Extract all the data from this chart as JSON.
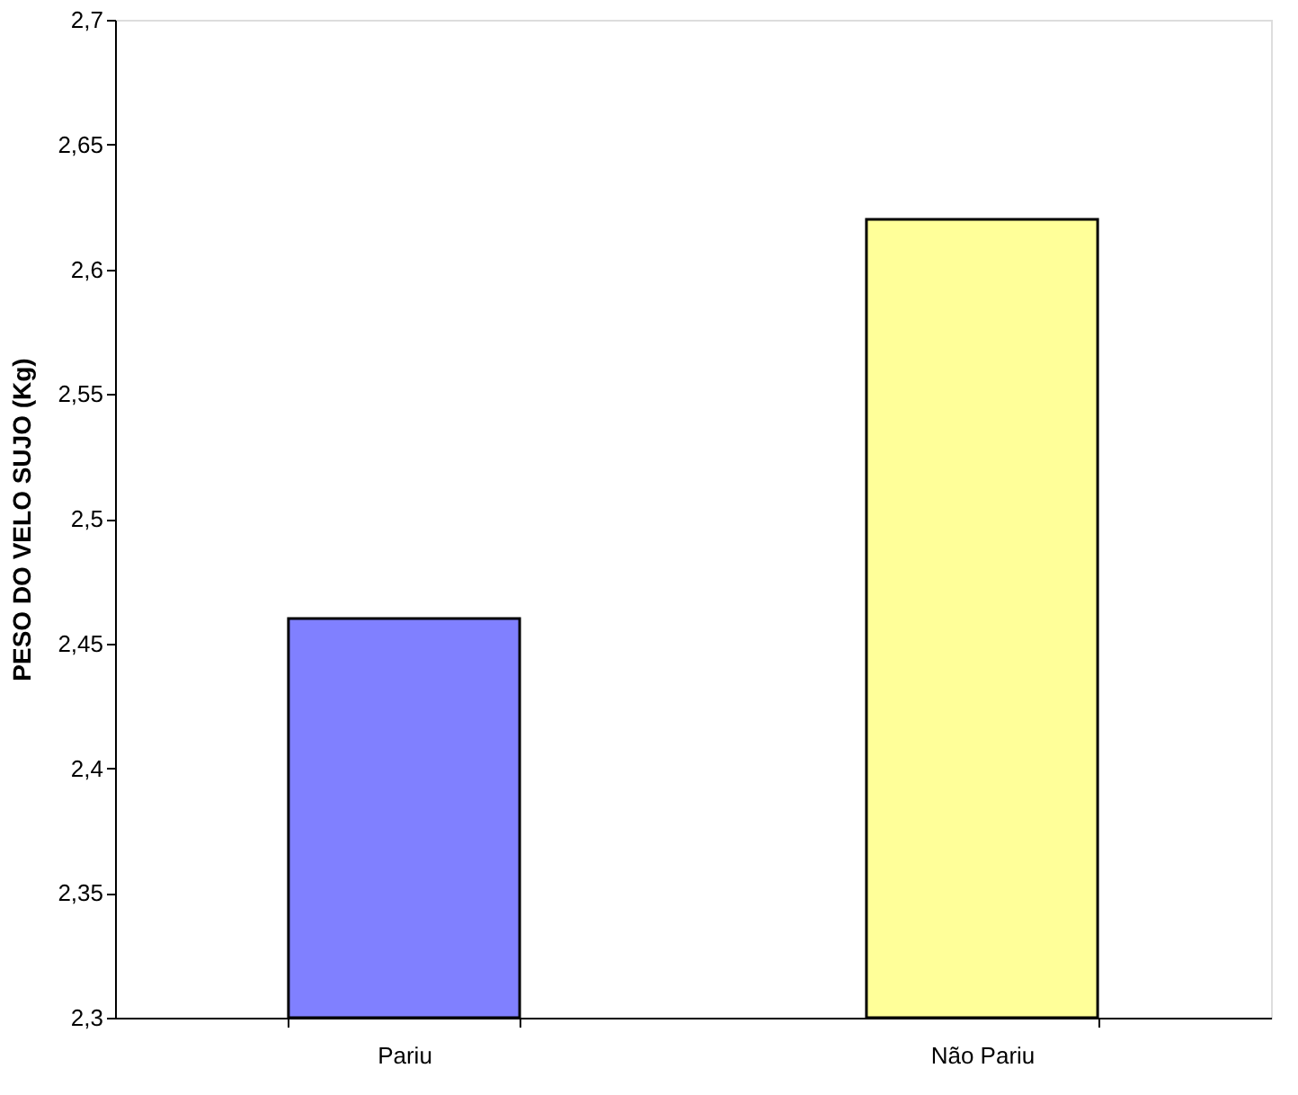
{
  "chart_data": {
    "type": "bar",
    "ylabel": "PESO DO VELO SUJO (Kg)",
    "categories": [
      "Pariu",
      "Não Pariu"
    ],
    "values": [
      2.46,
      2.62
    ],
    "colors": [
      "#8080ff",
      "#ffff99"
    ],
    "ylim": [
      2.3,
      2.7
    ],
    "yticks": [
      {
        "value": 2.3,
        "label": "2,3"
      },
      {
        "value": 2.35,
        "label": "2,35"
      },
      {
        "value": 2.4,
        "label": "2,4"
      },
      {
        "value": 2.45,
        "label": "2,45"
      },
      {
        "value": 2.5,
        "label": "2,5"
      },
      {
        "value": 2.55,
        "label": "2,55"
      },
      {
        "value": 2.6,
        "label": "2,6"
      },
      {
        "value": 2.65,
        "label": "2,65"
      },
      {
        "value": 2.7,
        "label": "2,7"
      }
    ],
    "grid": false
  }
}
